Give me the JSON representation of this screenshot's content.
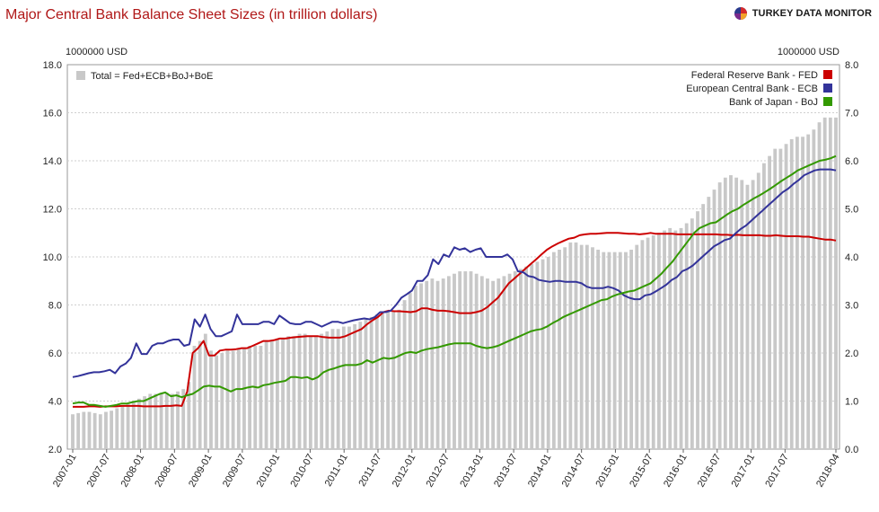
{
  "header": {
    "title": "Major Central Bank Balance Sheet Sizes (in trillion dollars)",
    "brand": "TURKEY DATA MONITOR",
    "left_unit": "1000000 USD",
    "right_unit": "1000000 USD"
  },
  "colors": {
    "bars": "#c8c8c8",
    "fed": "#cc0000",
    "ecb": "#33339a",
    "boj": "#339900",
    "title": "#b01818"
  },
  "chart_data": {
    "type": "bar+line",
    "title": "Major Central Bank Balance Sheet Sizes (in trillion dollars)",
    "y_left": {
      "label": "1000000 USD",
      "range": [
        2.0,
        18.0
      ],
      "ticks": [
        "2.0",
        "4.0",
        "6.0",
        "8.0",
        "10.0",
        "12.0",
        "14.0",
        "16.0",
        "18.0"
      ]
    },
    "y_right": {
      "label": "1000000 USD",
      "range": [
        0.0,
        8.0
      ],
      "ticks": [
        "0.0",
        "1.0",
        "2.0",
        "3.0",
        "4.0",
        "5.0",
        "6.0",
        "7.0",
        "8.0"
      ]
    },
    "x_labels": [
      "2007-01",
      "2007-07",
      "2008-01",
      "2008-07",
      "2009-01",
      "2009-07",
      "2010-01",
      "2010-07",
      "2011-01",
      "2011-07",
      "2012-01",
      "2012-07",
      "2013-01",
      "2013-07",
      "2014-01",
      "2014-07",
      "2015-01",
      "2015-07",
      "2016-01",
      "2016-07",
      "2017-01",
      "2017-07",
      "2018-04"
    ],
    "x_start": "2007-01",
    "x_end": "2018-04",
    "grid": true,
    "legend_bar": {
      "label": "Total = Fed+ECB+BoJ+BoE",
      "position": "top-left"
    },
    "legend_lines_position": "top-right",
    "series": [
      {
        "name": "Total = Fed+ECB+BoJ+BoE",
        "type": "bar",
        "axis": "left",
        "color": "#c8c8c8",
        "values": [
          3.45,
          3.5,
          3.55,
          3.55,
          3.5,
          3.45,
          3.55,
          3.6,
          3.7,
          3.8,
          3.9,
          4.0,
          4.1,
          4.2,
          4.3,
          4.3,
          4.3,
          4.35,
          4.3,
          4.4,
          4.5,
          4.8,
          6.3,
          6.5,
          6.8,
          6.1,
          5.9,
          6.0,
          6.1,
          6.1,
          6.2,
          6.2,
          6.3,
          6.3,
          6.3,
          6.5,
          6.5,
          6.6,
          6.6,
          6.7,
          6.7,
          6.8,
          6.8,
          6.7,
          6.7,
          6.8,
          6.9,
          7.0,
          7.0,
          7.1,
          7.1,
          7.2,
          7.3,
          7.4,
          7.5,
          7.6,
          7.7,
          7.7,
          7.7,
          7.8,
          8.2,
          8.5,
          8.8,
          8.9,
          9.0,
          9.1,
          9.0,
          9.1,
          9.2,
          9.3,
          9.4,
          9.4,
          9.4,
          9.3,
          9.2,
          9.1,
          9.0,
          9.1,
          9.2,
          9.3,
          9.4,
          9.5,
          9.6,
          9.7,
          9.8,
          9.9,
          10.0,
          10.2,
          10.3,
          10.4,
          10.6,
          10.6,
          10.5,
          10.5,
          10.4,
          10.3,
          10.2,
          10.2,
          10.2,
          10.2,
          10.2,
          10.3,
          10.5,
          10.7,
          10.8,
          10.9,
          11.0,
          11.1,
          11.2,
          11.1,
          11.2,
          11.4,
          11.6,
          11.9,
          12.2,
          12.5,
          12.8,
          13.1,
          13.3,
          13.4,
          13.3,
          13.2,
          13.0,
          13.2,
          13.5,
          13.9,
          14.2,
          14.5,
          14.5,
          14.7,
          14.9,
          15.0,
          15.0,
          15.1,
          15.3,
          15.6,
          15.8,
          15.8,
          15.8
        ]
      },
      {
        "name": "Federal Reserve Bank - FED",
        "type": "line",
        "axis": "right",
        "color": "#cc0000",
        "values": [
          0.88,
          0.88,
          0.88,
          0.89,
          0.89,
          0.88,
          0.89,
          0.89,
          0.89,
          0.9,
          0.9,
          0.9,
          0.9,
          0.89,
          0.89,
          0.89,
          0.89,
          0.9,
          0.9,
          0.91,
          0.9,
          1.2,
          2.0,
          2.1,
          2.25,
          1.95,
          1.95,
          2.05,
          2.07,
          2.07,
          2.08,
          2.1,
          2.1,
          2.15,
          2.2,
          2.25,
          2.25,
          2.27,
          2.3,
          2.3,
          2.32,
          2.33,
          2.34,
          2.35,
          2.35,
          2.35,
          2.33,
          2.32,
          2.32,
          2.32,
          2.35,
          2.4,
          2.45,
          2.5,
          2.6,
          2.68,
          2.75,
          2.85,
          2.88,
          2.87,
          2.87,
          2.86,
          2.85,
          2.87,
          2.93,
          2.93,
          2.9,
          2.88,
          2.88,
          2.87,
          2.85,
          2.83,
          2.83,
          2.83,
          2.85,
          2.88,
          2.95,
          3.05,
          3.15,
          3.3,
          3.45,
          3.55,
          3.65,
          3.75,
          3.85,
          3.95,
          4.05,
          4.15,
          4.22,
          4.28,
          4.33,
          4.38,
          4.4,
          4.45,
          4.47,
          4.48,
          4.48,
          4.49,
          4.5,
          4.5,
          4.5,
          4.49,
          4.48,
          4.48,
          4.47,
          4.48,
          4.5,
          4.48,
          4.48,
          4.48,
          4.48,
          4.47,
          4.47,
          4.47,
          4.47,
          4.47,
          4.47,
          4.47,
          4.47,
          4.46,
          4.46,
          4.45,
          4.46,
          4.45,
          4.45,
          4.45,
          4.45,
          4.44,
          4.44,
          4.45,
          4.44,
          4.43,
          4.43,
          4.43,
          4.42,
          4.42,
          4.4,
          4.38,
          4.36,
          4.36,
          4.34
        ]
      },
      {
        "name": "European Central Bank - ECB",
        "type": "line",
        "axis": "right",
        "color": "#33339a",
        "values": [
          1.5,
          1.52,
          1.55,
          1.58,
          1.6,
          1.6,
          1.62,
          1.65,
          1.58,
          1.72,
          1.78,
          1.9,
          2.2,
          1.98,
          1.98,
          2.15,
          2.2,
          2.2,
          2.25,
          2.28,
          2.28,
          2.15,
          2.18,
          2.7,
          2.55,
          2.8,
          2.5,
          2.35,
          2.35,
          2.4,
          2.45,
          2.8,
          2.6,
          2.6,
          2.6,
          2.6,
          2.65,
          2.65,
          2.6,
          2.78,
          2.7,
          2.62,
          2.6,
          2.6,
          2.65,
          2.65,
          2.6,
          2.55,
          2.6,
          2.65,
          2.65,
          2.62,
          2.65,
          2.68,
          2.7,
          2.72,
          2.7,
          2.75,
          2.85,
          2.85,
          2.88,
          3.0,
          3.15,
          3.22,
          3.3,
          3.5,
          3.5,
          3.62,
          3.95,
          3.85,
          4.05,
          4.0,
          4.2,
          4.15,
          4.18,
          4.1,
          4.15,
          4.18,
          4.0,
          4.0,
          4.0,
          4.0,
          4.05,
          3.95,
          3.7,
          3.68,
          3.6,
          3.58,
          3.52,
          3.5,
          3.48,
          3.5,
          3.5,
          3.48,
          3.48,
          3.48,
          3.45,
          3.38,
          3.35,
          3.35,
          3.35,
          3.38,
          3.35,
          3.3,
          3.2,
          3.15,
          3.12,
          3.12,
          3.2,
          3.22,
          3.28,
          3.35,
          3.42,
          3.52,
          3.58,
          3.7,
          3.75,
          3.82,
          3.92,
          4.02,
          4.12,
          4.22,
          4.28,
          4.35,
          4.38,
          4.48,
          4.58,
          4.65,
          4.75,
          4.85,
          4.95,
          5.05,
          5.15,
          5.25,
          5.35,
          5.42,
          5.52,
          5.6,
          5.7,
          5.75,
          5.8,
          5.82,
          5.82,
          5.82,
          5.8
        ]
      },
      {
        "name": "Bank of Japan - BoJ",
        "type": "line",
        "axis": "right",
        "color": "#339900",
        "values": [
          0.95,
          0.97,
          0.97,
          0.92,
          0.92,
          0.9,
          0.88,
          0.9,
          0.92,
          0.95,
          0.95,
          0.98,
          1.0,
          1.0,
          1.05,
          1.1,
          1.15,
          1.18,
          1.1,
          1.12,
          1.08,
          1.12,
          1.15,
          1.22,
          1.3,
          1.32,
          1.3,
          1.3,
          1.25,
          1.2,
          1.25,
          1.25,
          1.28,
          1.3,
          1.28,
          1.33,
          1.35,
          1.38,
          1.4,
          1.42,
          1.5,
          1.5,
          1.48,
          1.5,
          1.45,
          1.5,
          1.6,
          1.65,
          1.68,
          1.72,
          1.75,
          1.75,
          1.75,
          1.78,
          1.85,
          1.8,
          1.85,
          1.9,
          1.88,
          1.9,
          1.95,
          2.0,
          2.02,
          2.0,
          2.05,
          2.08,
          2.1,
          2.12,
          2.15,
          2.18,
          2.2,
          2.2,
          2.2,
          2.2,
          2.15,
          2.12,
          2.1,
          2.12,
          2.15,
          2.2,
          2.25,
          2.3,
          2.35,
          2.4,
          2.45,
          2.48,
          2.5,
          2.55,
          2.62,
          2.68,
          2.75,
          2.8,
          2.85,
          2.9,
          2.95,
          3.0,
          3.05,
          3.1,
          3.12,
          3.18,
          3.22,
          3.25,
          3.28,
          3.3,
          3.35,
          3.4,
          3.45,
          3.55,
          3.65,
          3.78,
          3.9,
          4.05,
          4.2,
          4.35,
          4.5,
          4.6,
          4.65,
          4.7,
          4.72,
          4.8,
          4.88,
          4.95,
          5.0,
          5.08,
          5.15,
          5.22,
          5.28,
          5.35,
          5.42,
          5.5,
          5.58,
          5.65,
          5.72,
          5.8,
          5.85,
          5.9,
          5.95,
          6.0,
          6.02,
          6.05,
          6.1
        ]
      }
    ]
  }
}
